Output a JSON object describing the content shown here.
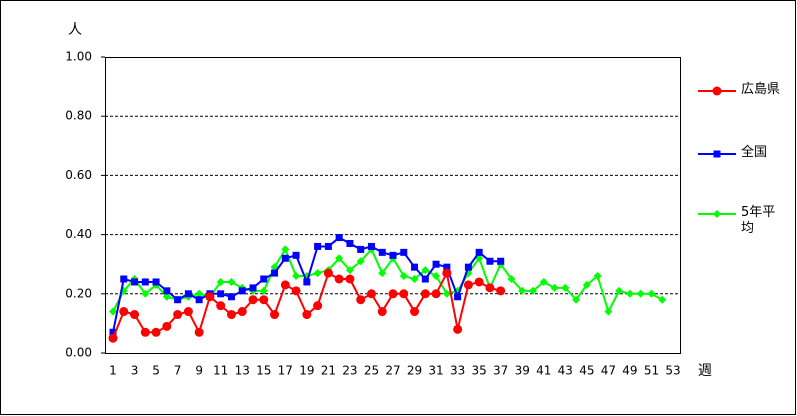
{
  "chart_data": {
    "type": "line",
    "x": [
      1,
      2,
      3,
      4,
      5,
      6,
      7,
      8,
      9,
      10,
      11,
      12,
      13,
      14,
      15,
      16,
      17,
      18,
      19,
      20,
      21,
      22,
      23,
      24,
      25,
      26,
      27,
      28,
      29,
      30,
      31,
      32,
      33,
      34,
      35,
      36,
      37,
      38,
      39,
      40,
      41,
      42,
      43,
      44,
      45,
      46,
      47,
      48,
      49,
      50,
      51,
      52,
      53
    ],
    "xlim": [
      1,
      53
    ],
    "xticks": [
      1,
      3,
      5,
      7,
      9,
      11,
      13,
      15,
      17,
      19,
      21,
      23,
      25,
      27,
      29,
      31,
      33,
      35,
      37,
      39,
      41,
      43,
      45,
      47,
      49,
      51,
      53
    ],
    "ylim": [
      0,
      1
    ],
    "yticks": [
      {
        "value": 0,
        "label": "0.00"
      },
      {
        "value": 0.2,
        "label": "0.20"
      },
      {
        "value": 0.4,
        "label": "0.40"
      },
      {
        "value": 0.6,
        "label": "0.60"
      },
      {
        "value": 0.8,
        "label": "0.80"
      },
      {
        "value": 1,
        "label": "1.00"
      }
    ],
    "x_label": "週",
    "y_label": "人",
    "grid": true,
    "legend": "right",
    "series": [
      {
        "name": "広島県",
        "color": "#ff0000",
        "marker": "circle",
        "values": [
          0.05,
          0.14,
          0.13,
          0.07,
          0.07,
          0.09,
          0.13,
          0.14,
          0.07,
          0.19,
          0.16,
          0.13,
          0.14,
          0.18,
          0.18,
          0.13,
          0.23,
          0.21,
          0.13,
          0.16,
          0.27,
          0.25,
          0.25,
          0.18,
          0.2,
          0.14,
          0.2,
          0.2,
          0.14,
          0.2,
          0.2,
          0.27,
          0.08,
          0.23,
          0.24,
          0.22,
          0.21,
          null,
          null,
          null,
          null,
          null,
          null,
          null,
          null,
          null,
          null,
          null,
          null,
          null,
          null,
          null,
          null
        ]
      },
      {
        "name": "全国",
        "color": "#0000ff",
        "marker": "square",
        "values": [
          0.07,
          0.25,
          0.24,
          0.24,
          0.24,
          0.21,
          0.18,
          0.2,
          0.18,
          0.2,
          0.2,
          0.19,
          0.21,
          0.22,
          0.25,
          0.27,
          0.32,
          0.33,
          0.24,
          0.36,
          0.36,
          0.39,
          0.37,
          0.35,
          0.36,
          0.34,
          0.33,
          0.34,
          0.29,
          0.25,
          0.3,
          0.29,
          0.19,
          0.29,
          0.34,
          0.31,
          0.31,
          null,
          null,
          null,
          null,
          null,
          null,
          null,
          null,
          null,
          null,
          null,
          null,
          null,
          null,
          null,
          null
        ]
      },
      {
        "name": "5年平均",
        "color": "#00ff00",
        "marker": "diamond",
        "values": [
          0.14,
          0.21,
          0.25,
          0.2,
          0.23,
          0.19,
          0.18,
          0.19,
          0.2,
          0.19,
          0.24,
          0.24,
          0.22,
          0.21,
          0.21,
          0.29,
          0.35,
          0.26,
          0.26,
          0.27,
          0.28,
          0.32,
          0.28,
          0.31,
          0.35,
          0.27,
          0.32,
          0.26,
          0.25,
          0.28,
          0.26,
          0.2,
          0.21,
          0.27,
          0.32,
          0.22,
          0.3,
          0.25,
          0.21,
          0.21,
          0.24,
          0.22,
          0.22,
          0.18,
          0.23,
          0.26,
          0.14,
          0.21,
          0.2,
          0.2,
          0.2,
          0.18,
          null
        ]
      }
    ]
  }
}
